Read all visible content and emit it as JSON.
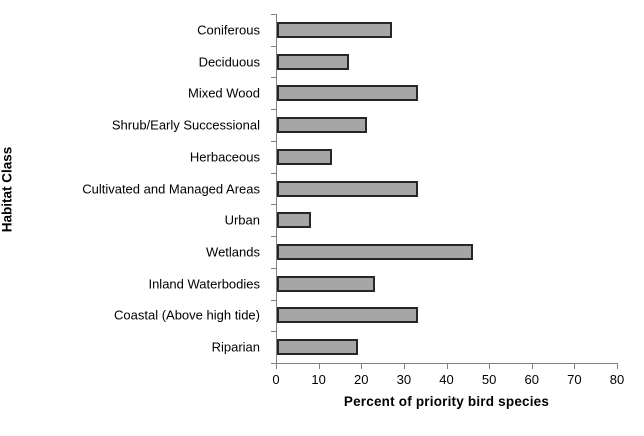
{
  "chart_data": {
    "type": "bar",
    "orientation": "horizontal",
    "title": "",
    "xlabel": "Percent of priority bird species",
    "ylabel": "Habitat Class",
    "categories": [
      "Coniferous",
      "Deciduous",
      "Mixed Wood",
      "Shrub/Early Successional",
      "Herbaceous",
      "Cultivated and Managed Areas",
      "Urban",
      "Wetlands",
      "Inland Waterbodies",
      "Coastal (Above high tide)",
      "Riparian"
    ],
    "values": [
      27,
      17,
      33,
      21,
      13,
      33,
      8,
      46,
      23,
      33,
      19
    ],
    "xlim": [
      0,
      80
    ],
    "xticks": [
      0,
      10,
      20,
      30,
      40,
      50,
      60,
      70,
      80
    ],
    "grid": false,
    "legend": false,
    "bar_fill": "#A6A6A6",
    "bar_border": "#262626",
    "axis_color": "#808080"
  }
}
